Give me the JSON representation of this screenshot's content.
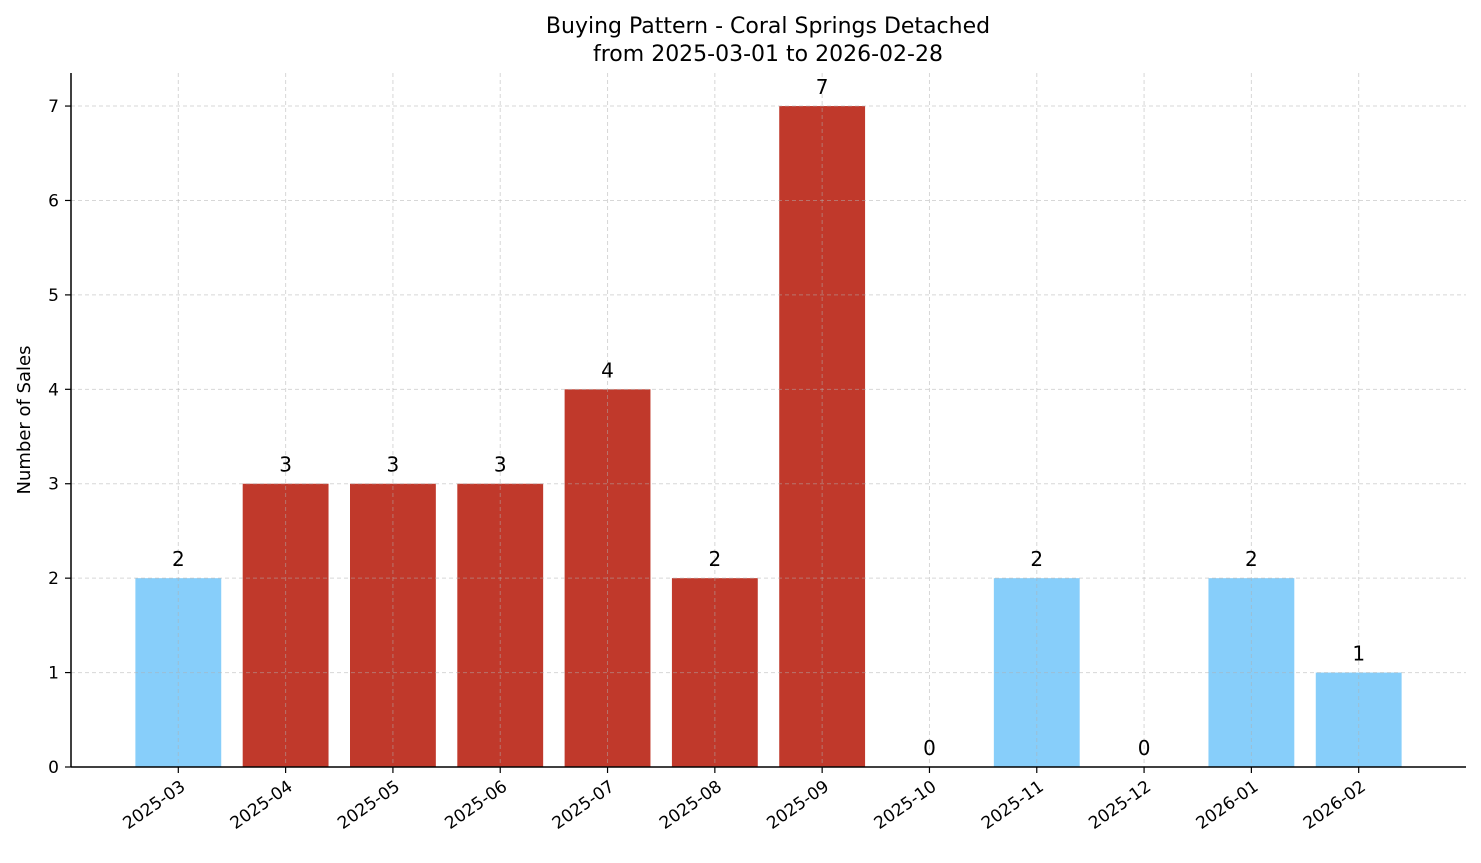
{
  "chart_data": {
    "type": "bar",
    "title": "Buying Pattern - Coral Springs Detached",
    "subtitle": "from 2025-03-01 to 2026-02-28",
    "xlabel": "",
    "ylabel": "Number of Sales",
    "categories": [
      "2025-03",
      "2025-04",
      "2025-05",
      "2025-06",
      "2025-07",
      "2025-08",
      "2025-09",
      "2025-10",
      "2025-11",
      "2025-12",
      "2026-01",
      "2026-02"
    ],
    "values": [
      2,
      3,
      3,
      3,
      4,
      2,
      7,
      0,
      2,
      0,
      2,
      1
    ],
    "bar_colors": [
      "#87cefa",
      "#c0392b",
      "#c0392b",
      "#c0392b",
      "#c0392b",
      "#c0392b",
      "#c0392b",
      "#87cefa",
      "#87cefa",
      "#87cefa",
      "#87cefa",
      "#87cefa"
    ],
    "ylim": [
      0,
      7.35
    ],
    "yticks": [
      0,
      1,
      2,
      3,
      4,
      5,
      6,
      7
    ],
    "grid": true,
    "data_labels": true
  }
}
